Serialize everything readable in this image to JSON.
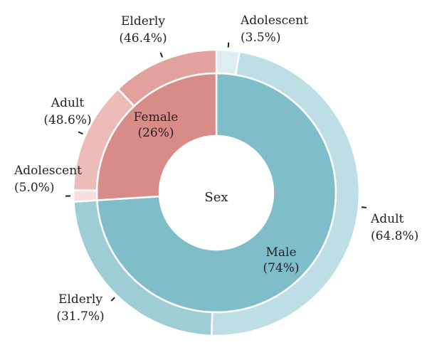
{
  "chart_data": {
    "type": "pie",
    "center_label": "Sex",
    "inner": [
      {
        "label": "Male",
        "pct_label": "(74%)",
        "value": 74,
        "color": "#7fbdc9"
      },
      {
        "label": "Female",
        "pct_label": "(26%)",
        "value": 26,
        "color": "#d98b87"
      }
    ],
    "outer": [
      {
        "parent": "Male",
        "label": "Adolescent",
        "pct_label": "(3.5%)",
        "value": 3.5,
        "color": "#dceef1"
      },
      {
        "parent": "Male",
        "label": "Adult",
        "pct_label": "(64.8%)",
        "value": 64.8,
        "color": "#bcdee4"
      },
      {
        "parent": "Male",
        "label": "Elderly",
        "pct_label": "(31.7%)",
        "value": 31.7,
        "color": "#9fcdd5"
      },
      {
        "parent": "Female",
        "label": "Adolescent",
        "pct_label": "(5.0%)",
        "value": 5.0,
        "color": "#f8dfdd"
      },
      {
        "parent": "Female",
        "label": "Adult",
        "pct_label": "(48.6%)",
        "value": 48.6,
        "color": "#edbcb8"
      },
      {
        "parent": "Female",
        "label": "Elderly",
        "pct_label": "(46.4%)",
        "value": 46.4,
        "color": "#e2a19d"
      }
    ]
  }
}
